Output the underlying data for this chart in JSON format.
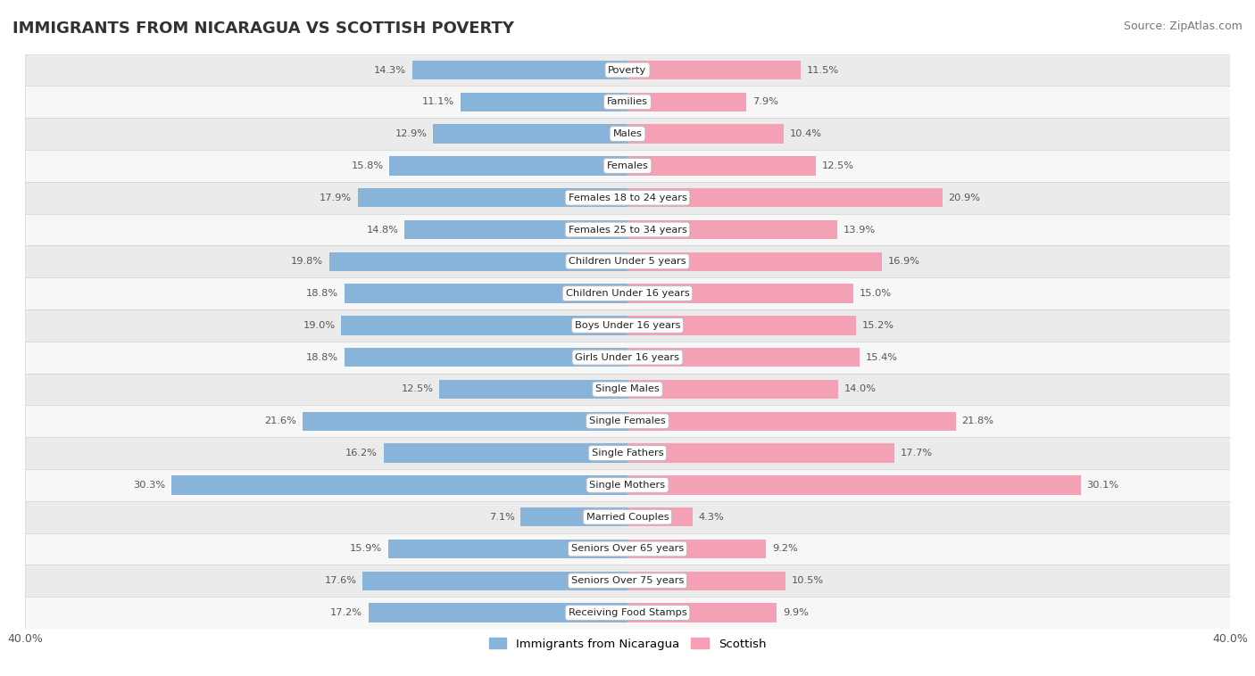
{
  "title": "IMMIGRANTS FROM NICARAGUA VS SCOTTISH POVERTY",
  "source": "Source: ZipAtlas.com",
  "categories": [
    "Poverty",
    "Families",
    "Males",
    "Females",
    "Females 18 to 24 years",
    "Females 25 to 34 years",
    "Children Under 5 years",
    "Children Under 16 years",
    "Boys Under 16 years",
    "Girls Under 16 years",
    "Single Males",
    "Single Females",
    "Single Fathers",
    "Single Mothers",
    "Married Couples",
    "Seniors Over 65 years",
    "Seniors Over 75 years",
    "Receiving Food Stamps"
  ],
  "nicaragua_values": [
    14.3,
    11.1,
    12.9,
    15.8,
    17.9,
    14.8,
    19.8,
    18.8,
    19.0,
    18.8,
    12.5,
    21.6,
    16.2,
    30.3,
    7.1,
    15.9,
    17.6,
    17.2
  ],
  "scottish_values": [
    11.5,
    7.9,
    10.4,
    12.5,
    20.9,
    13.9,
    16.9,
    15.0,
    15.2,
    15.4,
    14.0,
    21.8,
    17.7,
    30.1,
    4.3,
    9.2,
    10.5,
    9.9
  ],
  "nicaragua_color": "#89b4d9",
  "scottish_color": "#f4a0b5",
  "label_color": "#555555",
  "bg_row_light": "#ebebeb",
  "bg_row_white": "#f7f7f7",
  "axis_limit": 40.0,
  "bar_height": 0.6,
  "legend_nicaragua": "Immigrants from Nicaragua",
  "legend_scottish": "Scottish",
  "title_fontsize": 13,
  "source_fontsize": 9,
  "label_fontsize": 8.2,
  "value_fontsize": 8.2,
  "tick_fontsize": 9
}
